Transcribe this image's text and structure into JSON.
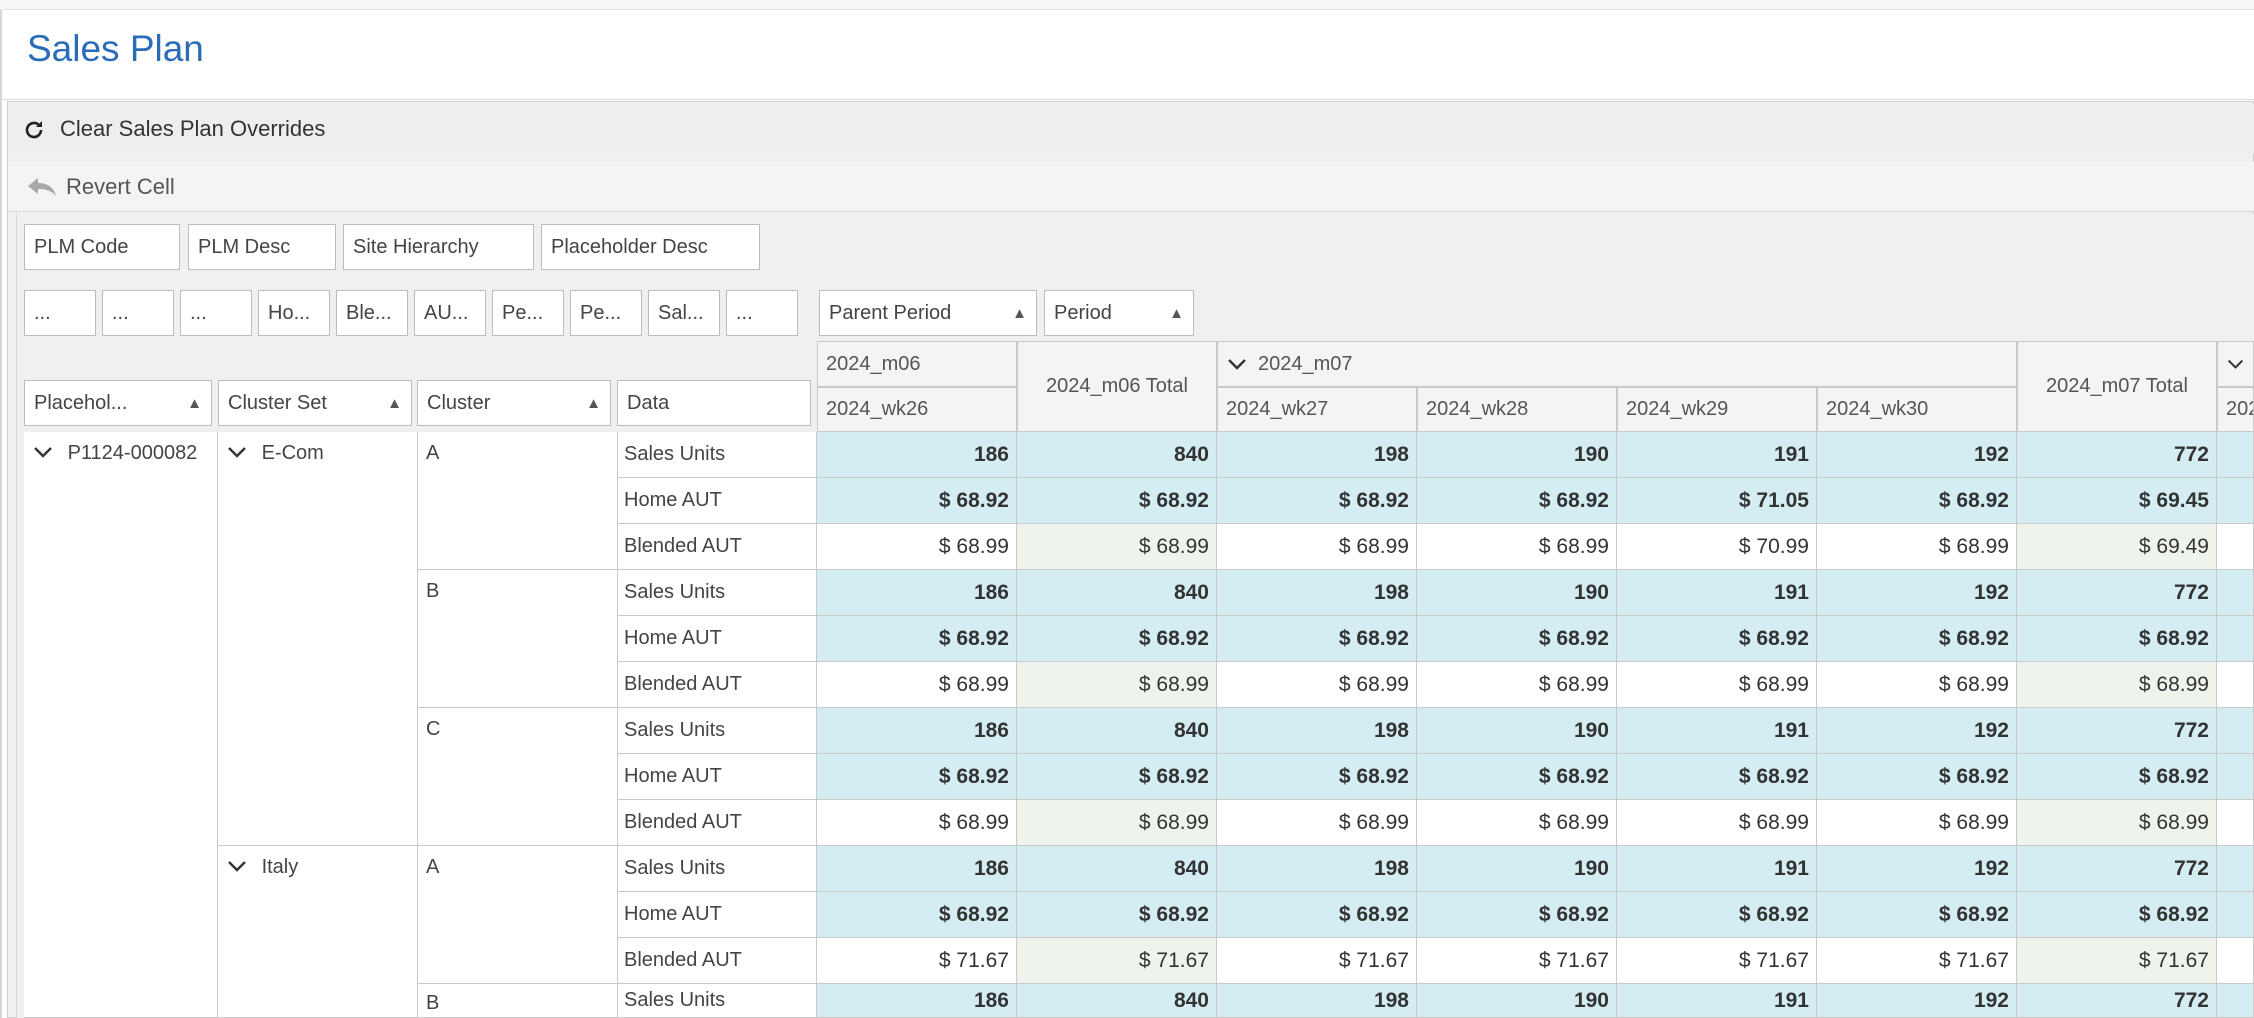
{
  "page_title": "Sales Plan",
  "toolbar": {
    "clear_label": "Clear Sales Plan Overrides",
    "revert_label": "Revert Cell"
  },
  "filter_fields": [
    "PLM Code",
    "PLM Desc",
    "Site Hierarchy",
    "Placeholder Desc"
  ],
  "data_fields": [
    "...",
    "...",
    "...",
    "Ho...",
    "Ble...",
    "AU...",
    "Pe...",
    "Pe...",
    "Sal...",
    "..."
  ],
  "column_fields": [
    "Parent Period",
    "Period"
  ],
  "row_fields": [
    "Placehol...",
    "Cluster Set",
    "Cluster",
    "Data"
  ],
  "column_headers": {
    "m06": "2024_m06",
    "m06_total": "2024_m06 Total",
    "m07": "2024_m07",
    "m07_total": "2024_m07 Total",
    "weeks": [
      "2024_wk26",
      "2024_wk27",
      "2024_wk28",
      "2024_wk29",
      "2024_wk30"
    ],
    "next_partial": "202"
  },
  "rows": {
    "placeholder": "P1124-000082",
    "cluster_sets": [
      "E-Com",
      "Italy"
    ],
    "clusters": [
      "A",
      "B",
      "C",
      "A",
      "B"
    ],
    "measures": [
      "Sales Units",
      "Home AUT",
      "Blended AUT"
    ]
  },
  "grid": [
    [
      "186",
      "840",
      "198",
      "190",
      "191",
      "192",
      "772"
    ],
    [
      "$ 68.92",
      "$ 68.92",
      "$ 68.92",
      "$ 68.92",
      "$ 71.05",
      "$ 68.92",
      "$ 69.45"
    ],
    [
      "$ 68.99",
      "$ 68.99",
      "$ 68.99",
      "$ 68.99",
      "$ 70.99",
      "$ 68.99",
      "$ 69.49"
    ],
    [
      "186",
      "840",
      "198",
      "190",
      "191",
      "192",
      "772"
    ],
    [
      "$ 68.92",
      "$ 68.92",
      "$ 68.92",
      "$ 68.92",
      "$ 68.92",
      "$ 68.92",
      "$ 68.92"
    ],
    [
      "$ 68.99",
      "$ 68.99",
      "$ 68.99",
      "$ 68.99",
      "$ 68.99",
      "$ 68.99",
      "$ 68.99"
    ],
    [
      "186",
      "840",
      "198",
      "190",
      "191",
      "192",
      "772"
    ],
    [
      "$ 68.92",
      "$ 68.92",
      "$ 68.92",
      "$ 68.92",
      "$ 68.92",
      "$ 68.92",
      "$ 68.92"
    ],
    [
      "$ 68.99",
      "$ 68.99",
      "$ 68.99",
      "$ 68.99",
      "$ 68.99",
      "$ 68.99",
      "$ 68.99"
    ],
    [
      "186",
      "840",
      "198",
      "190",
      "191",
      "192",
      "772"
    ],
    [
      "$ 68.92",
      "$ 68.92",
      "$ 68.92",
      "$ 68.92",
      "$ 68.92",
      "$ 68.92",
      "$ 68.92"
    ],
    [
      "$ 71.67",
      "$ 71.67",
      "$ 71.67",
      "$ 71.67",
      "$ 71.67",
      "$ 71.67",
      "$ 71.67"
    ],
    [
      "186",
      "840",
      "198",
      "190",
      "191",
      "192",
      "772"
    ]
  ],
  "colors": {
    "title_blue": "#2b6cb8",
    "units_bg": "#d4edf2",
    "total_bg": "#eef4ec"
  },
  "icons": {
    "refresh": "refresh-icon",
    "revert": "revert-arrow-icon",
    "sort": "sort-ascending-icon",
    "expand": "chevron-down-icon"
  }
}
